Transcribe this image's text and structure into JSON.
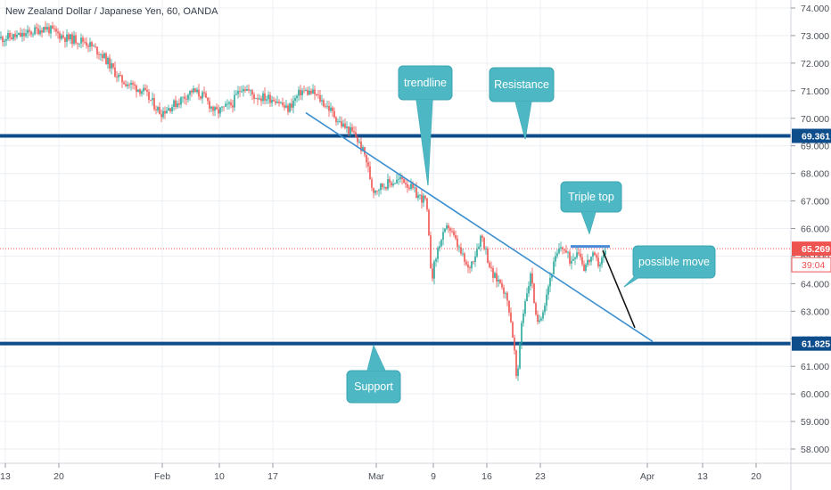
{
  "header": {
    "title": "New Zealand Dollar / Japanese Yen, 60, OANDA"
  },
  "colors": {
    "up": "#26a69a",
    "down": "#ef5350",
    "level": "#0d4d8c",
    "trend": "#3b8fd0",
    "callout": "#4db8c4",
    "grid": "#eceff3",
    "current": "#ef5350",
    "countdown": "#ef5350"
  },
  "chart_data": {
    "type": "candlestick",
    "title": "New Zealand Dollar / Japanese Yen, 60, OANDA",
    "timeframe": "60",
    "ylim": [
      57.6,
      74.2
    ],
    "y_ticks": [
      "58.000",
      "59.000",
      "60.000",
      "61.000",
      "62.000",
      "63.000",
      "64.000",
      "65.000",
      "66.000",
      "67.000",
      "68.000",
      "69.000",
      "70.000",
      "71.000",
      "72.000",
      "73.000",
      "74.000"
    ],
    "x_ticks": [
      "13",
      "20",
      "Feb",
      "10",
      "17",
      "Mar",
      "9",
      "16",
      "23",
      "Apr",
      "13",
      "20"
    ],
    "price_path": [
      {
        "x": 0,
        "y": 72.9
      },
      {
        "x": 25,
        "y": 73.0
      },
      {
        "x": 50,
        "y": 73.3
      },
      {
        "x": 75,
        "y": 72.9
      },
      {
        "x": 95,
        "y": 72.8
      },
      {
        "x": 115,
        "y": 72.3
      },
      {
        "x": 135,
        "y": 71.4
      },
      {
        "x": 160,
        "y": 71.0
      },
      {
        "x": 180,
        "y": 70.2
      },
      {
        "x": 200,
        "y": 70.6
      },
      {
        "x": 215,
        "y": 71.0
      },
      {
        "x": 228,
        "y": 70.8
      },
      {
        "x": 242,
        "y": 70.2
      },
      {
        "x": 260,
        "y": 70.5
      },
      {
        "x": 272,
        "y": 71.2
      },
      {
        "x": 285,
        "y": 70.8
      },
      {
        "x": 310,
        "y": 70.7
      },
      {
        "x": 322,
        "y": 70.3
      },
      {
        "x": 338,
        "y": 71.0
      },
      {
        "x": 352,
        "y": 70.9
      },
      {
        "x": 368,
        "y": 70.4
      },
      {
        "x": 382,
        "y": 69.8
      },
      {
        "x": 398,
        "y": 69.4
      },
      {
        "x": 410,
        "y": 68.6
      },
      {
        "x": 418,
        "y": 67.4
      },
      {
        "x": 432,
        "y": 67.6
      },
      {
        "x": 452,
        "y": 67.8
      },
      {
        "x": 468,
        "y": 67.2
      },
      {
        "x": 478,
        "y": 67.0
      },
      {
        "x": 484,
        "y": 64.2
      },
      {
        "x": 492,
        "y": 65.4
      },
      {
        "x": 503,
        "y": 66.1
      },
      {
        "x": 514,
        "y": 65.3
      },
      {
        "x": 525,
        "y": 64.5
      },
      {
        "x": 533,
        "y": 65.1
      },
      {
        "x": 540,
        "y": 65.8
      },
      {
        "x": 552,
        "y": 64.3
      },
      {
        "x": 563,
        "y": 64.0
      },
      {
        "x": 571,
        "y": 63.1
      },
      {
        "x": 576,
        "y": 61.9
      },
      {
        "x": 580,
        "y": 60.2
      },
      {
        "x": 584,
        "y": 62.4
      },
      {
        "x": 590,
        "y": 63.6
      },
      {
        "x": 596,
        "y": 64.4
      },
      {
        "x": 602,
        "y": 62.4
      },
      {
        "x": 610,
        "y": 63.2
      },
      {
        "x": 616,
        "y": 64.1
      },
      {
        "x": 622,
        "y": 64.8
      },
      {
        "x": 630,
        "y": 65.4
      },
      {
        "x": 640,
        "y": 64.8
      },
      {
        "x": 648,
        "y": 65.3
      },
      {
        "x": 655,
        "y": 64.6
      },
      {
        "x": 664,
        "y": 65.0
      },
      {
        "x": 672,
        "y": 64.7
      },
      {
        "x": 680,
        "y": 65.2
      }
    ],
    "levels": [
      {
        "name": "resistance",
        "price": 69.361,
        "label": "69.361"
      },
      {
        "name": "support",
        "price": 61.825,
        "label": "61.825"
      }
    ],
    "current_price": {
      "price": 65.269,
      "label": "65.269",
      "countdown": "39:04"
    },
    "trendline": {
      "x1": 343,
      "y1": 70.2,
      "x2": 732,
      "y2": 61.9
    },
    "triple_top": {
      "x1": 640,
      "y1": 65.35,
      "x2": 684,
      "y2": 65.35
    },
    "projection": [
      {
        "x": 676,
        "y": 65.2
      },
      {
        "x": 712,
        "y": 62.4
      }
    ],
    "annotations": [
      {
        "name": "trendline",
        "text": "trendline"
      },
      {
        "name": "resistance",
        "text": "Resistance"
      },
      {
        "name": "triple-top",
        "text": "Triple top"
      },
      {
        "name": "possible-move",
        "text": "possible move"
      },
      {
        "name": "support",
        "text": "Support"
      }
    ]
  }
}
